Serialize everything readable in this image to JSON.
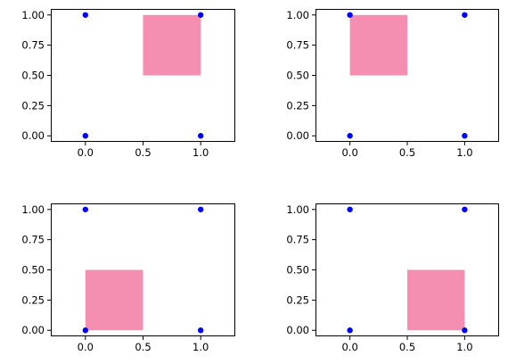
{
  "colors": {
    "point": "#0000ff",
    "rect": "#f48fb1",
    "axes": "#000000",
    "background": "#ffffff"
  },
  "chart_data": [
    {
      "type": "scatter",
      "title": "",
      "xlabel": "",
      "ylabel": "",
      "grid": false,
      "xlim": [
        -0.3,
        1.3
      ],
      "ylim": [
        -0.05,
        1.05
      ],
      "xticks": [
        0.0,
        0.5,
        1.0
      ],
      "xtick_labels": [
        "0.0",
        "0.5",
        "1.0"
      ],
      "yticks": [
        0.0,
        0.25,
        0.5,
        0.75,
        1.0
      ],
      "ytick_labels": [
        "0.00",
        "0.25",
        "0.50",
        "0.75",
        "1.00"
      ],
      "points": [
        [
          0,
          1
        ],
        [
          1,
          1
        ],
        [
          0,
          0
        ],
        [
          1,
          0
        ]
      ],
      "rect": {
        "x0": 0.5,
        "x1": 1.0,
        "y0": 0.5,
        "y1": 1.0
      }
    },
    {
      "type": "scatter",
      "title": "",
      "xlabel": "",
      "ylabel": "",
      "grid": false,
      "xlim": [
        -0.3,
        1.3
      ],
      "ylim": [
        -0.05,
        1.05
      ],
      "xticks": [
        0.0,
        0.5,
        1.0
      ],
      "xtick_labels": [
        "0.0",
        "0.5",
        "1.0"
      ],
      "yticks": [
        0.0,
        0.25,
        0.5,
        0.75,
        1.0
      ],
      "ytick_labels": [
        "0.00",
        "0.25",
        "0.50",
        "0.75",
        "1.00"
      ],
      "points": [
        [
          0,
          1
        ],
        [
          1,
          1
        ],
        [
          0,
          0
        ],
        [
          1,
          0
        ]
      ],
      "rect": {
        "x0": 0.0,
        "x1": 0.5,
        "y0": 0.5,
        "y1": 1.0
      }
    },
    {
      "type": "scatter",
      "title": "",
      "xlabel": "",
      "ylabel": "",
      "grid": false,
      "xlim": [
        -0.3,
        1.3
      ],
      "ylim": [
        -0.05,
        1.05
      ],
      "xticks": [
        0.0,
        0.5,
        1.0
      ],
      "xtick_labels": [
        "0.0",
        "0.5",
        "1.0"
      ],
      "yticks": [
        0.0,
        0.25,
        0.5,
        0.75,
        1.0
      ],
      "ytick_labels": [
        "0.00",
        "0.25",
        "0.50",
        "0.75",
        "1.00"
      ],
      "points": [
        [
          0,
          1
        ],
        [
          1,
          1
        ],
        [
          0,
          0
        ],
        [
          1,
          0
        ]
      ],
      "rect": {
        "x0": 0.0,
        "x1": 0.5,
        "y0": 0.0,
        "y1": 0.5
      }
    },
    {
      "type": "scatter",
      "title": "",
      "xlabel": "",
      "ylabel": "",
      "grid": false,
      "xlim": [
        -0.3,
        1.3
      ],
      "ylim": [
        -0.05,
        1.05
      ],
      "xticks": [
        0.0,
        0.5,
        1.0
      ],
      "xtick_labels": [
        "0.0",
        "0.5",
        "1.0"
      ],
      "yticks": [
        0.0,
        0.25,
        0.5,
        0.75,
        1.0
      ],
      "ytick_labels": [
        "0.00",
        "0.25",
        "0.50",
        "0.75",
        "1.00"
      ],
      "points": [
        [
          0,
          1
        ],
        [
          1,
          1
        ],
        [
          0,
          0
        ],
        [
          1,
          0
        ]
      ],
      "rect": {
        "x0": 0.5,
        "x1": 1.0,
        "y0": 0.0,
        "y1": 0.5
      }
    }
  ]
}
